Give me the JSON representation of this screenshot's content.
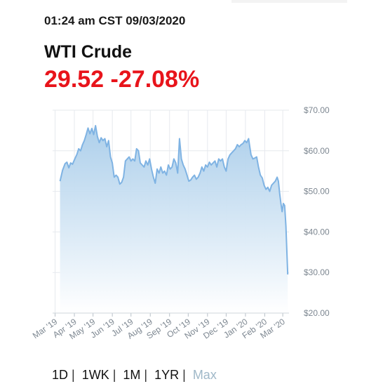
{
  "header": {
    "timestamp": "01:24 am CST 09/03/2020",
    "name": "WTI Crude",
    "price": "29.52",
    "change": "-27.08%"
  },
  "colors": {
    "quote": "#e8141b",
    "line": "#7fb3e3",
    "fill_top": "#a9cdea",
    "fill_bottom": "#ffffff",
    "grid": "#e6e9ee",
    "axis_text": "#7d8791"
  },
  "range_buttons": [
    {
      "label": "1D",
      "active": false
    },
    {
      "label": "1WK",
      "active": false
    },
    {
      "label": "1M",
      "active": false
    },
    {
      "label": "1YR",
      "active": false
    },
    {
      "label": "Max",
      "active": true
    }
  ],
  "chart_data": {
    "type": "area",
    "title": "",
    "xlabel": "",
    "ylabel": "",
    "y_axis_position": "right",
    "grid": true,
    "ylim": [
      20,
      70
    ],
    "y_ticks": [
      70,
      60,
      50,
      40,
      30,
      20
    ],
    "y_tick_labels": [
      "$70.00",
      "$60.00",
      "$50.00",
      "$40.00",
      "$30.00",
      "$20.00"
    ],
    "x_ticks": [
      "2019-03-01",
      "2019-04-01",
      "2019-05-01",
      "2019-06-01",
      "2019-07-01",
      "2019-08-01",
      "2019-09-01",
      "2019-10-01",
      "2019-11-01",
      "2019-12-01",
      "2020-01-01",
      "2020-02-01",
      "2020-03-01"
    ],
    "x_tick_labels": [
      "Mar '19",
      "Apr '19",
      "May '19",
      "Jun '19",
      "Jul '19",
      "Aug '19",
      "Sep '19",
      "Oct '19",
      "Nov '19",
      "Dec '19",
      "Jan '20",
      "Feb '20",
      "Mar '20"
    ],
    "xlim": [
      "2019-02-25",
      "2020-03-11"
    ],
    "series": [
      {
        "name": "",
        "points": [
          [
            "2019-03-09",
            52.5
          ],
          [
            "2019-03-13",
            55.2
          ],
          [
            "2019-03-17",
            56.8
          ],
          [
            "2019-03-20",
            57.2
          ],
          [
            "2019-03-23",
            55.8
          ],
          [
            "2019-03-26",
            57.0
          ],
          [
            "2019-03-29",
            56.7
          ],
          [
            "2019-04-02",
            58.1
          ],
          [
            "2019-04-05",
            59.1
          ],
          [
            "2019-04-08",
            60.5
          ],
          [
            "2019-04-11",
            60.0
          ],
          [
            "2019-04-14",
            61.5
          ],
          [
            "2019-04-17",
            62.5
          ],
          [
            "2019-04-20",
            64.0
          ],
          [
            "2019-04-23",
            65.6
          ],
          [
            "2019-04-26",
            64.2
          ],
          [
            "2019-04-29",
            65.5
          ],
          [
            "2019-05-02",
            64.0
          ],
          [
            "2019-05-05",
            66.2
          ],
          [
            "2019-05-08",
            63.5
          ],
          [
            "2019-05-11",
            62.0
          ],
          [
            "2019-05-14",
            63.2
          ],
          [
            "2019-05-17",
            62.5
          ],
          [
            "2019-05-20",
            63.0
          ],
          [
            "2019-05-23",
            61.0
          ],
          [
            "2019-05-26",
            62.5
          ],
          [
            "2019-05-29",
            58.5
          ],
          [
            "2019-06-01",
            57.0
          ],
          [
            "2019-06-04",
            53.5
          ],
          [
            "2019-06-07",
            54.0
          ],
          [
            "2019-06-10",
            53.5
          ],
          [
            "2019-06-13",
            51.8
          ],
          [
            "2019-06-16",
            52.2
          ],
          [
            "2019-06-19",
            53.5
          ],
          [
            "2019-06-22",
            57.5
          ],
          [
            "2019-06-25",
            58.0
          ],
          [
            "2019-06-28",
            58.5
          ],
          [
            "2019-07-01",
            57.5
          ],
          [
            "2019-07-04",
            58.0
          ],
          [
            "2019-07-07",
            57.5
          ],
          [
            "2019-07-10",
            60.5
          ],
          [
            "2019-07-13",
            60.0
          ],
          [
            "2019-07-16",
            57.0
          ],
          [
            "2019-07-19",
            56.5
          ],
          [
            "2019-07-22",
            56.0
          ],
          [
            "2019-07-25",
            57.5
          ],
          [
            "2019-07-28",
            56.5
          ],
          [
            "2019-07-31",
            58.0
          ],
          [
            "2019-08-03",
            55.5
          ],
          [
            "2019-08-06",
            53.5
          ],
          [
            "2019-08-09",
            52.0
          ],
          [
            "2019-08-12",
            55.5
          ],
          [
            "2019-08-15",
            54.5
          ],
          [
            "2019-08-18",
            56.0
          ],
          [
            "2019-08-21",
            54.5
          ],
          [
            "2019-08-24",
            55.0
          ],
          [
            "2019-08-27",
            54.0
          ],
          [
            "2019-08-30",
            56.5
          ],
          [
            "2019-09-02",
            55.5
          ],
          [
            "2019-09-05",
            56.0
          ],
          [
            "2019-09-08",
            58.0
          ],
          [
            "2019-09-11",
            57.0
          ],
          [
            "2019-09-14",
            54.5
          ],
          [
            "2019-09-17",
            63.0
          ],
          [
            "2019-09-20",
            58.0
          ],
          [
            "2019-09-23",
            56.5
          ],
          [
            "2019-09-26",
            55.5
          ],
          [
            "2019-09-29",
            54.0
          ],
          [
            "2019-10-02",
            52.5
          ],
          [
            "2019-10-05",
            52.8
          ],
          [
            "2019-10-08",
            53.5
          ],
          [
            "2019-10-11",
            54.0
          ],
          [
            "2019-10-14",
            53.0
          ],
          [
            "2019-10-17",
            53.5
          ],
          [
            "2019-10-20",
            54.5
          ],
          [
            "2019-10-23",
            56.0
          ],
          [
            "2019-10-26",
            55.0
          ],
          [
            "2019-10-29",
            56.5
          ],
          [
            "2019-11-01",
            56.0
          ],
          [
            "2019-11-04",
            57.2
          ],
          [
            "2019-11-07",
            56.5
          ],
          [
            "2019-11-10",
            57.0
          ],
          [
            "2019-11-13",
            57.5
          ],
          [
            "2019-11-16",
            56.0
          ],
          [
            "2019-11-19",
            58.0
          ],
          [
            "2019-11-22",
            57.5
          ],
          [
            "2019-11-25",
            58.0
          ],
          [
            "2019-11-28",
            56.0
          ],
          [
            "2019-12-01",
            55.0
          ],
          [
            "2019-12-04",
            58.0
          ],
          [
            "2019-12-07",
            59.0
          ],
          [
            "2019-12-10",
            59.5
          ],
          [
            "2019-12-13",
            60.0
          ],
          [
            "2019-12-16",
            60.5
          ],
          [
            "2019-12-19",
            61.5
          ],
          [
            "2019-12-22",
            61.0
          ],
          [
            "2019-12-25",
            61.5
          ],
          [
            "2019-12-28",
            61.8
          ],
          [
            "2019-12-31",
            62.5
          ],
          [
            "2020-01-03",
            62.0
          ],
          [
            "2020-01-06",
            63.0
          ],
          [
            "2020-01-08",
            61.0
          ],
          [
            "2020-01-10",
            59.0
          ],
          [
            "2020-01-13",
            58.0
          ],
          [
            "2020-01-16",
            58.2
          ],
          [
            "2020-01-19",
            58.5
          ],
          [
            "2020-01-22",
            56.0
          ],
          [
            "2020-01-25",
            54.0
          ],
          [
            "2020-01-28",
            53.3
          ],
          [
            "2020-01-31",
            51.5
          ],
          [
            "2020-02-03",
            50.5
          ],
          [
            "2020-02-06",
            51.0
          ],
          [
            "2020-02-09",
            50.0
          ],
          [
            "2020-02-12",
            51.5
          ],
          [
            "2020-02-15",
            52.0
          ],
          [
            "2020-02-18",
            52.5
          ],
          [
            "2020-02-21",
            53.5
          ],
          [
            "2020-02-23",
            52.5
          ],
          [
            "2020-02-25",
            49.5
          ],
          [
            "2020-02-27",
            47.0
          ],
          [
            "2020-02-29",
            45.0
          ],
          [
            "2020-03-02",
            47.0
          ],
          [
            "2020-03-04",
            46.5
          ],
          [
            "2020-03-06",
            41.5
          ],
          [
            "2020-03-09",
            29.52
          ]
        ]
      }
    ]
  }
}
